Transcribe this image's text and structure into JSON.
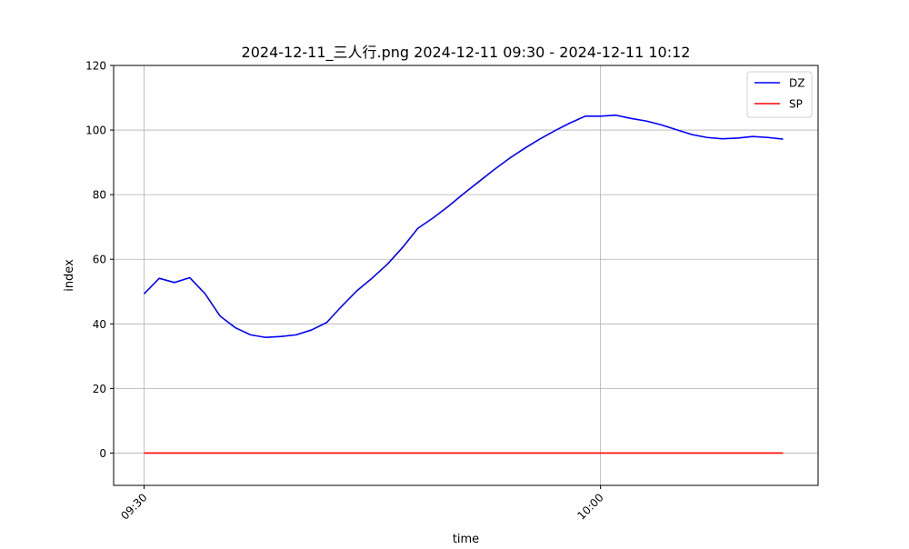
{
  "chart_data": {
    "type": "line",
    "title": "2024-12-11_三人行.png 2024-12-11 09:30 - 2024-12-11 10:12",
    "xlabel": "time",
    "ylabel": "index",
    "x_unit": "minutes after 09:30",
    "x": [
      0,
      1,
      2,
      3,
      4,
      5,
      6,
      7,
      8,
      9,
      10,
      11,
      12,
      13,
      14,
      15,
      16,
      17,
      18,
      19,
      20,
      21,
      22,
      23,
      24,
      25,
      26,
      27,
      28,
      29,
      30,
      31,
      32,
      33,
      34,
      35,
      36,
      37,
      38,
      39,
      40,
      41,
      42
    ],
    "xlim": [
      -2,
      44.3
    ],
    "ylim": [
      -10,
      120
    ],
    "xticks": [
      0,
      30
    ],
    "xtick_labels": [
      "09:30",
      "10:00"
    ],
    "yticks": [
      0,
      20,
      40,
      60,
      80,
      100,
      120
    ],
    "ytick_labels": [
      "0",
      "20",
      "40",
      "60",
      "80",
      "100",
      "120"
    ],
    "grid": true,
    "legend_position": "top-right",
    "series": [
      {
        "name": "DZ",
        "color": "#0000ff",
        "values": [
          49.3,
          54.1,
          52.8,
          54.3,
          49.4,
          42.4,
          38.8,
          36.6,
          35.8,
          36.1,
          36.6,
          38.1,
          40.4,
          45.5,
          50.3,
          54.2,
          58.5,
          63.7,
          69.6,
          72.8,
          76.4,
          80.3,
          84.0,
          87.7,
          91.2,
          94.3,
          97.2,
          99.8,
          102.2,
          104.3,
          104.3,
          104.6,
          103.6,
          102.8,
          101.6,
          100.1,
          98.6,
          97.7,
          97.3,
          97.5,
          98.0,
          97.7,
          97.2
        ]
      },
      {
        "name": "SP",
        "color": "#ff0000",
        "values": [
          0,
          0,
          0,
          0,
          0,
          0,
          0,
          0,
          0,
          0,
          0,
          0,
          0,
          0,
          0,
          0,
          0,
          0,
          0,
          0,
          0,
          0,
          0,
          0,
          0,
          0,
          0,
          0,
          0,
          0,
          0,
          0,
          0,
          0,
          0,
          0,
          0,
          0,
          0,
          0,
          0,
          0,
          0
        ]
      }
    ]
  }
}
